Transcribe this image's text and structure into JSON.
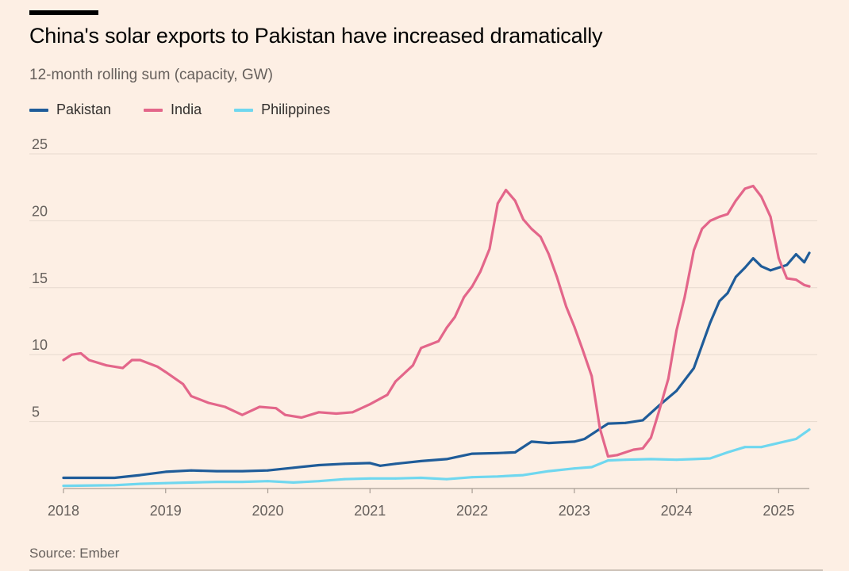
{
  "header": {
    "title": "China's solar exports to Pakistan have increased dramatically",
    "subtitle": "12-month rolling sum (capacity, GW)"
  },
  "legend": {
    "items": [
      {
        "label": "Pakistan",
        "color": "#1f5c99"
      },
      {
        "label": "India",
        "color": "#e3668a"
      },
      {
        "label": "Philippines",
        "color": "#6fd7ef"
      }
    ]
  },
  "chart_data": {
    "type": "line",
    "title": "China's solar exports to Pakistan have increased dramatically",
    "subtitle": "12-month rolling sum (capacity, GW)",
    "xlabel": "",
    "ylabel": "12-month rolling sum (capacity, GW)",
    "xlim": [
      2018.0,
      2025.3
    ],
    "ylim": [
      0,
      25
    ],
    "yticks": [
      5,
      10,
      15,
      20,
      25
    ],
    "yticklabels": [
      "5",
      "10",
      "15",
      "20",
      "25"
    ],
    "xticks": [
      2018,
      2019,
      2020,
      2021,
      2022,
      2023,
      2024,
      2025
    ],
    "xticklabels": [
      "2018",
      "2019",
      "2020",
      "2021",
      "2022",
      "2023",
      "2024",
      "2025"
    ],
    "grid": "horizontal",
    "legend_position": "top-left",
    "series": [
      {
        "name": "Pakistan",
        "color": "#1f5c99",
        "points": [
          [
            2018.0,
            0.8
          ],
          [
            2018.25,
            0.8
          ],
          [
            2018.5,
            0.8
          ],
          [
            2018.75,
            1.0
          ],
          [
            2019.0,
            1.25
          ],
          [
            2019.25,
            1.35
          ],
          [
            2019.5,
            1.3
          ],
          [
            2019.75,
            1.3
          ],
          [
            2020.0,
            1.35
          ],
          [
            2020.25,
            1.55
          ],
          [
            2020.5,
            1.75
          ],
          [
            2020.75,
            1.85
          ],
          [
            2021.0,
            1.9
          ],
          [
            2021.1,
            1.7
          ],
          [
            2021.25,
            1.85
          ],
          [
            2021.5,
            2.05
          ],
          [
            2021.75,
            2.2
          ],
          [
            2022.0,
            2.6
          ],
          [
            2022.25,
            2.65
          ],
          [
            2022.42,
            2.7
          ],
          [
            2022.58,
            3.5
          ],
          [
            2022.75,
            3.4
          ],
          [
            2023.0,
            3.5
          ],
          [
            2023.1,
            3.7
          ],
          [
            2023.33,
            4.85
          ],
          [
            2023.5,
            4.9
          ],
          [
            2023.67,
            5.1
          ],
          [
            2023.83,
            6.2
          ],
          [
            2024.0,
            7.3
          ],
          [
            2024.17,
            9.0
          ],
          [
            2024.33,
            12.4
          ],
          [
            2024.42,
            14.0
          ],
          [
            2024.5,
            14.6
          ],
          [
            2024.58,
            15.8
          ],
          [
            2024.67,
            16.5
          ],
          [
            2024.75,
            17.2
          ],
          [
            2024.83,
            16.6
          ],
          [
            2024.92,
            16.3
          ],
          [
            2025.0,
            16.5
          ],
          [
            2025.08,
            16.7
          ],
          [
            2025.17,
            17.5
          ],
          [
            2025.25,
            16.9
          ],
          [
            2025.3,
            17.6
          ]
        ]
      },
      {
        "name": "India",
        "color": "#e3668a",
        "points": [
          [
            2018.0,
            9.6
          ],
          [
            2018.08,
            10.0
          ],
          [
            2018.17,
            10.1
          ],
          [
            2018.25,
            9.6
          ],
          [
            2018.42,
            9.2
          ],
          [
            2018.58,
            9.0
          ],
          [
            2018.67,
            9.6
          ],
          [
            2018.75,
            9.6
          ],
          [
            2018.92,
            9.1
          ],
          [
            2019.0,
            8.7
          ],
          [
            2019.17,
            7.8
          ],
          [
            2019.25,
            6.9
          ],
          [
            2019.42,
            6.4
          ],
          [
            2019.58,
            6.1
          ],
          [
            2019.75,
            5.5
          ],
          [
            2019.92,
            6.1
          ],
          [
            2020.08,
            6.0
          ],
          [
            2020.17,
            5.5
          ],
          [
            2020.33,
            5.3
          ],
          [
            2020.5,
            5.7
          ],
          [
            2020.67,
            5.6
          ],
          [
            2020.83,
            5.7
          ],
          [
            2021.0,
            6.3
          ],
          [
            2021.17,
            7.0
          ],
          [
            2021.25,
            8.0
          ],
          [
            2021.42,
            9.2
          ],
          [
            2021.5,
            10.5
          ],
          [
            2021.67,
            11.0
          ],
          [
            2021.75,
            12.0
          ],
          [
            2021.83,
            12.8
          ],
          [
            2021.92,
            14.3
          ],
          [
            2022.0,
            15.1
          ],
          [
            2022.08,
            16.2
          ],
          [
            2022.17,
            17.9
          ],
          [
            2022.25,
            21.3
          ],
          [
            2022.33,
            22.3
          ],
          [
            2022.42,
            21.5
          ],
          [
            2022.5,
            20.1
          ],
          [
            2022.58,
            19.4
          ],
          [
            2022.67,
            18.8
          ],
          [
            2022.75,
            17.5
          ],
          [
            2022.83,
            15.8
          ],
          [
            2022.92,
            13.6
          ],
          [
            2023.0,
            12.1
          ],
          [
            2023.08,
            10.4
          ],
          [
            2023.17,
            8.4
          ],
          [
            2023.25,
            4.5
          ],
          [
            2023.33,
            2.4
          ],
          [
            2023.42,
            2.5
          ],
          [
            2023.5,
            2.7
          ],
          [
            2023.58,
            2.9
          ],
          [
            2023.67,
            3.0
          ],
          [
            2023.75,
            3.8
          ],
          [
            2023.83,
            5.8
          ],
          [
            2023.92,
            8.2
          ],
          [
            2024.0,
            11.8
          ],
          [
            2024.08,
            14.3
          ],
          [
            2024.17,
            17.8
          ],
          [
            2024.25,
            19.4
          ],
          [
            2024.33,
            20.0
          ],
          [
            2024.42,
            20.3
          ],
          [
            2024.5,
            20.5
          ],
          [
            2024.58,
            21.5
          ],
          [
            2024.67,
            22.4
          ],
          [
            2024.75,
            22.6
          ],
          [
            2024.83,
            21.8
          ],
          [
            2024.92,
            20.3
          ],
          [
            2025.0,
            17.2
          ],
          [
            2025.08,
            15.7
          ],
          [
            2025.17,
            15.6
          ],
          [
            2025.25,
            15.2
          ],
          [
            2025.3,
            15.1
          ]
        ]
      },
      {
        "name": "Philippines",
        "color": "#6fd7ef",
        "points": [
          [
            2018.0,
            0.2
          ],
          [
            2018.5,
            0.25
          ],
          [
            2018.75,
            0.35
          ],
          [
            2019.0,
            0.4
          ],
          [
            2019.25,
            0.45
          ],
          [
            2019.5,
            0.5
          ],
          [
            2019.75,
            0.5
          ],
          [
            2020.0,
            0.55
          ],
          [
            2020.25,
            0.45
          ],
          [
            2020.5,
            0.55
          ],
          [
            2020.75,
            0.7
          ],
          [
            2021.0,
            0.75
          ],
          [
            2021.25,
            0.75
          ],
          [
            2021.5,
            0.8
          ],
          [
            2021.75,
            0.7
          ],
          [
            2022.0,
            0.85
          ],
          [
            2022.25,
            0.9
          ],
          [
            2022.5,
            1.0
          ],
          [
            2022.75,
            1.3
          ],
          [
            2023.0,
            1.5
          ],
          [
            2023.17,
            1.6
          ],
          [
            2023.33,
            2.1
          ],
          [
            2023.5,
            2.15
          ],
          [
            2023.75,
            2.2
          ],
          [
            2024.0,
            2.15
          ],
          [
            2024.17,
            2.2
          ],
          [
            2024.33,
            2.25
          ],
          [
            2024.5,
            2.7
          ],
          [
            2024.67,
            3.1
          ],
          [
            2024.83,
            3.1
          ],
          [
            2025.0,
            3.4
          ],
          [
            2025.17,
            3.7
          ],
          [
            2025.3,
            4.4
          ]
        ]
      }
    ]
  },
  "footer": {
    "source": "Source: Ember"
  }
}
